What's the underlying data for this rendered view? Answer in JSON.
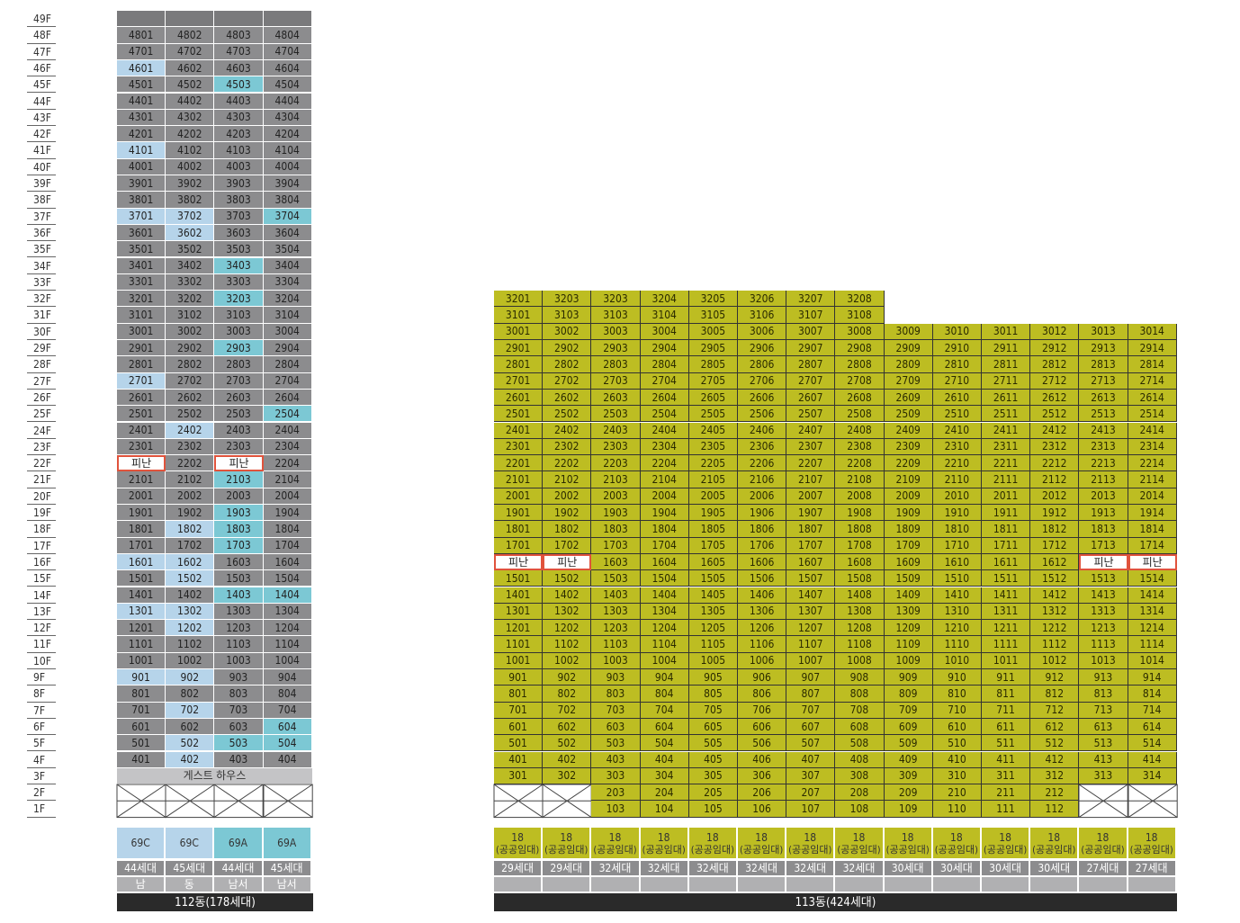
{
  "floors": [
    "49F",
    "48F",
    "47F",
    "46F",
    "45F",
    "44F",
    "43F",
    "42F",
    "41F",
    "40F",
    "39F",
    "38F",
    "37F",
    "36F",
    "35F",
    "34F",
    "33F",
    "32F",
    "31F",
    "30F",
    "29F",
    "28F",
    "27F",
    "26F",
    "25F",
    "24F",
    "23F",
    "22F",
    "21F",
    "20F",
    "19F",
    "18F",
    "17F",
    "16F",
    "15F",
    "14F",
    "13F",
    "12F",
    "11F",
    "10F",
    "9F",
    "8F",
    "7F",
    "6F",
    "5F",
    "4F",
    "3F",
    "2F",
    "1F"
  ],
  "shelter_label": "피난",
  "colors": {
    "plain": "#8c8c8e",
    "light_blue": "#b6d4ea",
    "teal": "#7cc8d4",
    "olive": "#bdbd22",
    "shelter_border": "#e0533c",
    "label_bar": "#2a2a2a"
  },
  "b112": {
    "title": "112동(178세대)",
    "guesthouse": "게스트 하우스",
    "types": [
      "69C",
      "69C",
      "69A",
      "69A"
    ],
    "households": [
      "44세대",
      "45세대",
      "44세대",
      "45세대"
    ],
    "orientation": [
      "남",
      "동",
      "남서",
      "남서"
    ],
    "highlights": {
      "light_blue": [
        "4601",
        "4101",
        "3701",
        "3702",
        "3602",
        "2701",
        "2402",
        "1802",
        "1602",
        "1601",
        "1502",
        "1302",
        "1301",
        "1202",
        "902",
        "901",
        "702",
        "502",
        "402"
      ],
      "teal": [
        "4503",
        "3704",
        "3403",
        "3203",
        "2903",
        "2504",
        "2103",
        "1903",
        "1803",
        "1703",
        "1404",
        "1403",
        "604",
        "504",
        "503"
      ]
    },
    "shelters": [
      "2201",
      "2203"
    ]
  },
  "b113": {
    "title": "113동(424세대)",
    "type_num": "18",
    "type_label": "(공공임대)",
    "households": [
      "29세대",
      "29세대",
      "32세대",
      "32세대",
      "32세대",
      "32세대",
      "32세대",
      "32세대",
      "30세대",
      "30세대",
      "30세대",
      "30세대",
      "27세대",
      "27세대"
    ],
    "row32": [
      "3201",
      "3203",
      "3203",
      "3204",
      "3205",
      "3206",
      "3207",
      "3208"
    ],
    "row31": [
      "3101",
      "3103",
      "3103",
      "3104",
      "3105",
      "3106",
      "3107",
      "3108"
    ],
    "shelters": [
      "1601",
      "1602",
      "1613",
      "1614"
    ]
  }
}
